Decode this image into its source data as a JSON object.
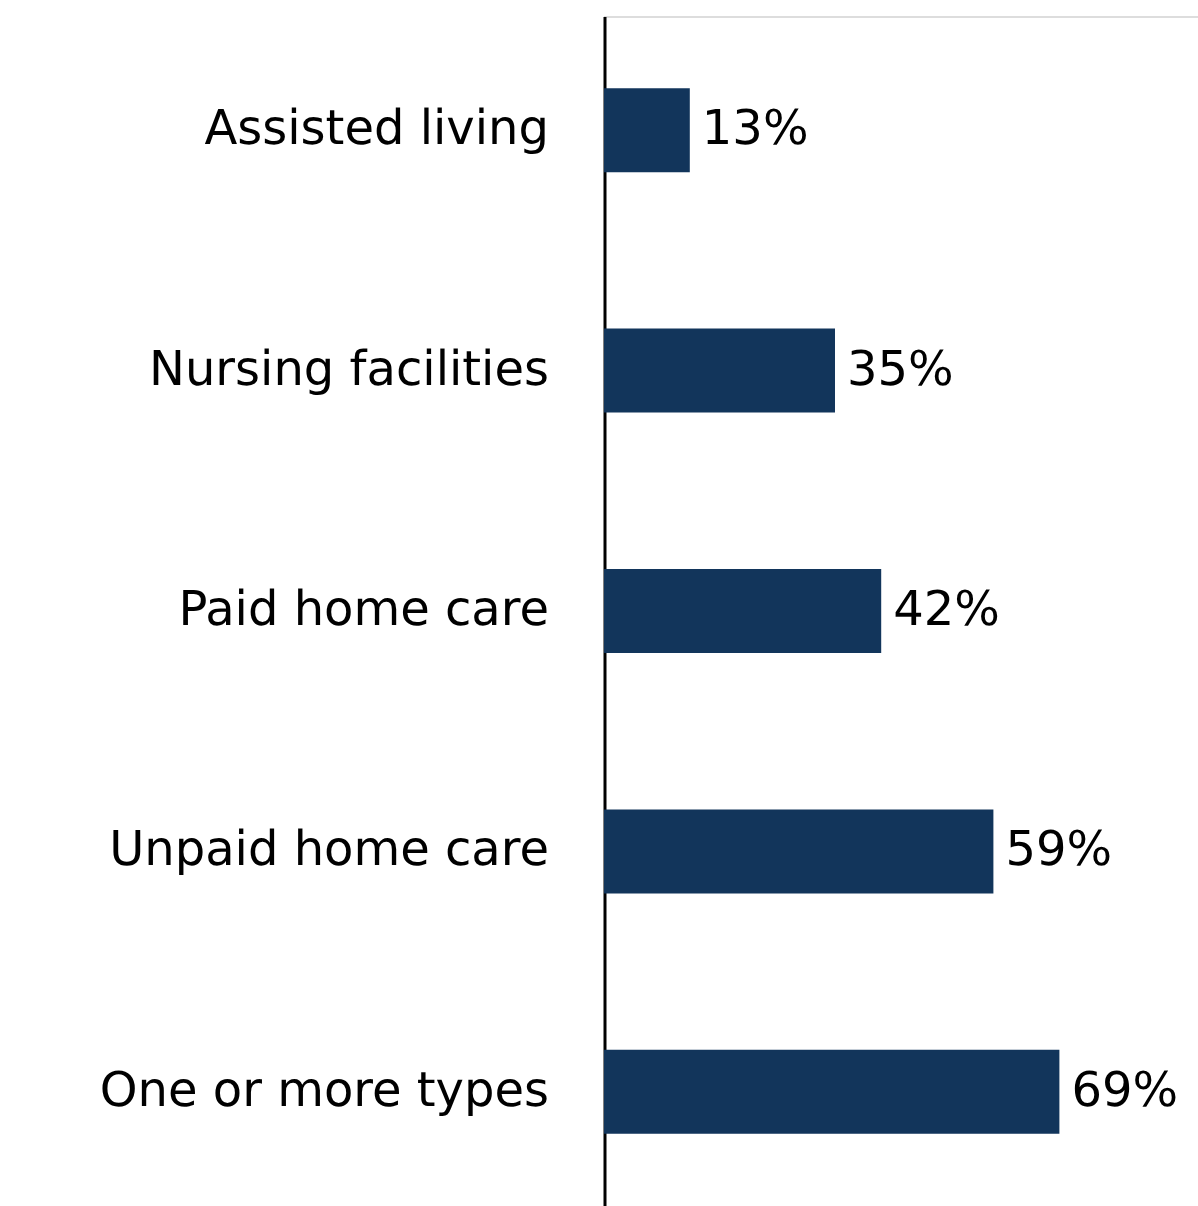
{
  "chart_data": {
    "type": "bar",
    "orientation": "horizontal",
    "categories": [
      "Assisted living",
      "Nursing facilities",
      "Paid home care",
      "Unpaid home care",
      "One or more types"
    ],
    "values": [
      13,
      35,
      42,
      59,
      69
    ],
    "value_labels": [
      "13%",
      "35%",
      "42%",
      "59%",
      "69%"
    ],
    "color": "#12355b",
    "xlim": [
      0,
      90
    ]
  }
}
